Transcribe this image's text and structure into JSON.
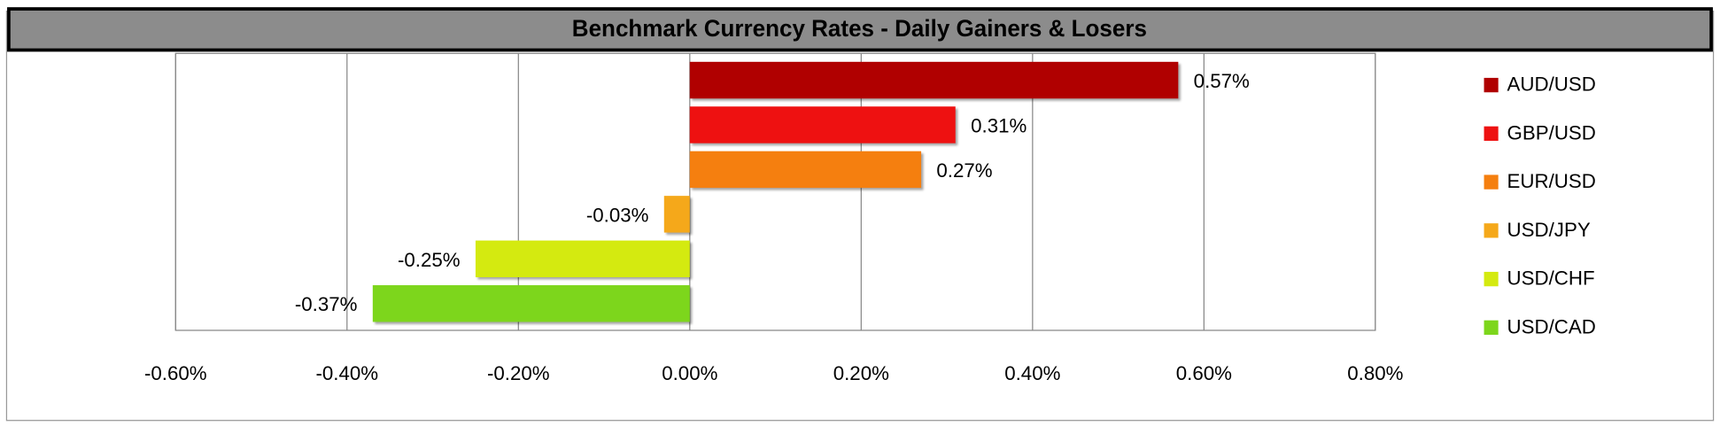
{
  "chart_data": {
    "type": "bar",
    "orientation": "horizontal",
    "title": "Benchmark Currency Rates - Daily Gainers & Losers",
    "categories": [
      "AUD/USD",
      "GBP/USD",
      "EUR/USD",
      "USD/JPY",
      "USD/CHF",
      "USD/CAD"
    ],
    "values": [
      0.57,
      0.31,
      0.27,
      -0.03,
      -0.25,
      -0.37
    ],
    "value_labels": [
      "0.57%",
      "0.31%",
      "0.27%",
      "-0.03%",
      "-0.25%",
      "-0.37%"
    ],
    "colors": [
      "#b00000",
      "#ee1111",
      "#f57f0f",
      "#f5a81a",
      "#d4ea10",
      "#7dd61c"
    ],
    "xlim": [
      -0.6,
      0.8
    ],
    "xticks": [
      {
        "value": -0.6,
        "label": "-0.60%"
      },
      {
        "value": -0.4,
        "label": "-0.40%"
      },
      {
        "value": -0.2,
        "label": "-0.20%"
      },
      {
        "value": 0,
        "label": "0.00%"
      },
      {
        "value": 0.2,
        "label": "0.20%"
      },
      {
        "value": 0.4,
        "label": "0.40%"
      },
      {
        "value": 0.6,
        "label": "0.60%"
      },
      {
        "value": 0.8,
        "label": "0.80%"
      }
    ],
    "grid": true,
    "legend": "right"
  }
}
